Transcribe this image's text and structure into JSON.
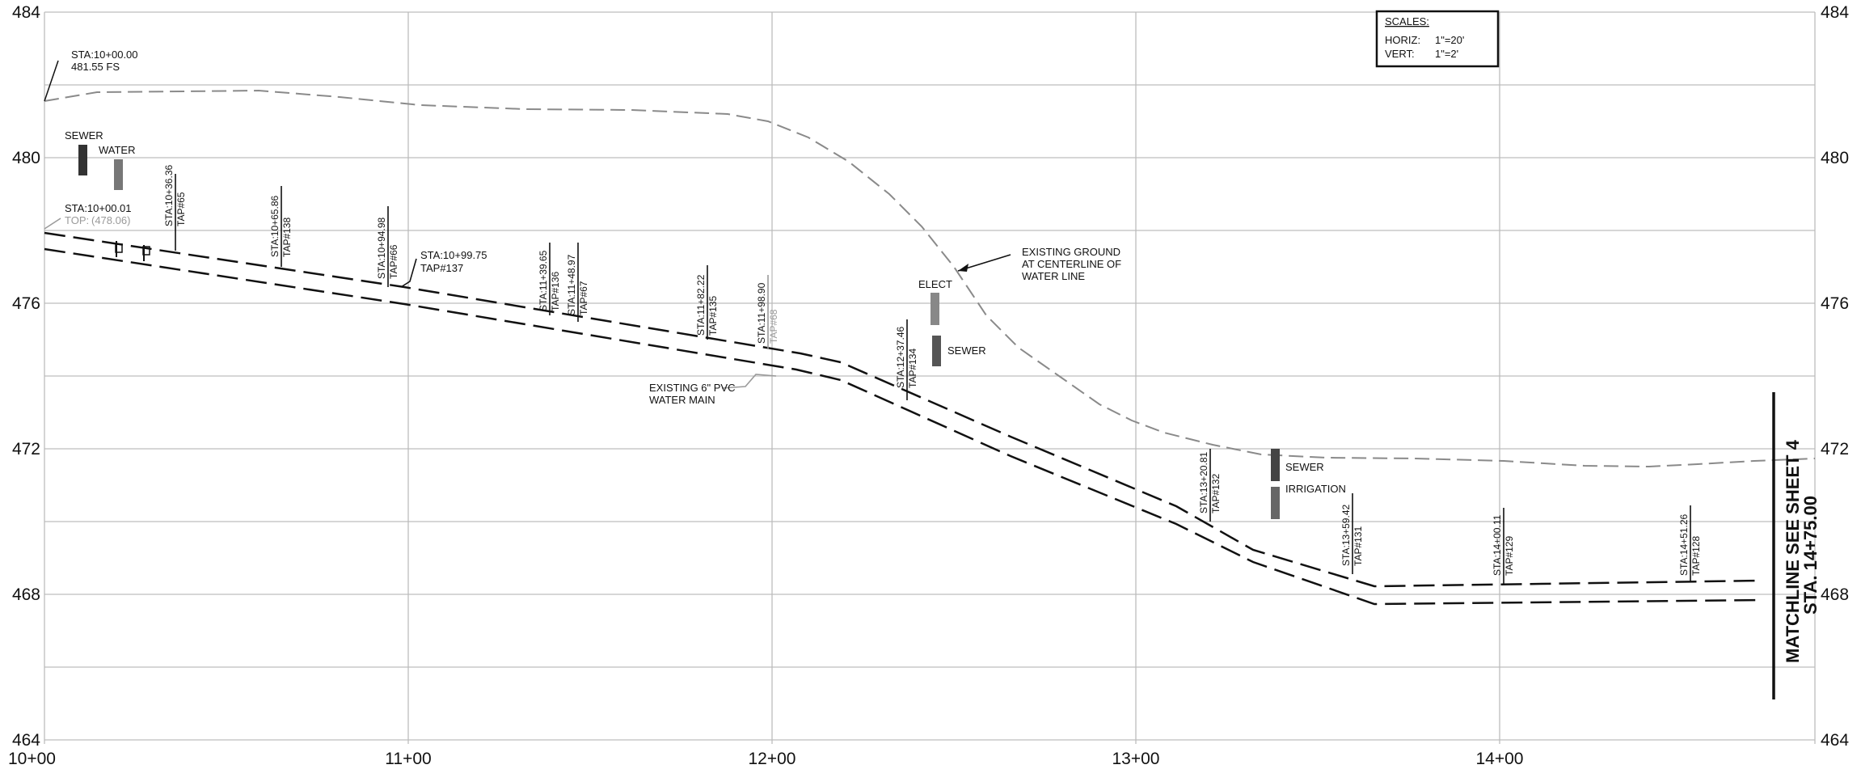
{
  "elevation_labels": [
    "484",
    "480",
    "476",
    "472",
    "468",
    "464"
  ],
  "station_labels": [
    "10+00",
    "11+00",
    "12+00",
    "13+00",
    "14+00"
  ],
  "scales": {
    "title": "SCALES:",
    "horiz_label": "HORIZ:",
    "horiz_value": "1\"=20'",
    "vert_label": "VERT:",
    "vert_value": "1\"=2'"
  },
  "start_note": {
    "line1": "STA:10+00.00",
    "line2": "481.55 FS"
  },
  "top_note": {
    "line1": "STA:10+00.01",
    "line2_prefix": "TOP:",
    "line2_value": "(478.06)"
  },
  "utilities": {
    "sewer_1": "SEWER",
    "water": "WATER",
    "elect": "ELECT",
    "sewer_2": "SEWER",
    "sewer_3": "SEWER",
    "irrigation": "IRRIGATION"
  },
  "existing_ground": {
    "line1": "EXISTING GROUND",
    "line2": "AT CENTERLINE OF",
    "line3": "WATER LINE"
  },
  "existing_main": {
    "line1": "EXISTING 6\" PVC",
    "line2": "WATER MAIN"
  },
  "horizontal_note": {
    "line1": "STA:10+99.75",
    "line2": "TAP#137"
  },
  "taps": [
    {
      "sta": "STA:10+36.36",
      "tap": "TAP#65"
    },
    {
      "sta": "STA:10+65.86",
      "tap": "TAP#138"
    },
    {
      "sta": "STA:10+94.98",
      "tap": "TAP#66"
    },
    {
      "sta": "STA:11+39.65",
      "tap": "TAP#136"
    },
    {
      "sta": "STA:11+48.97",
      "tap": "TAP#67"
    },
    {
      "sta": "STA:11+82.22",
      "tap": "TAP#135"
    },
    {
      "sta": "STA:11+98.90",
      "tap": "TAP#68"
    },
    {
      "sta": "STA:12+37.46",
      "tap": "TAP#134"
    },
    {
      "sta": "STA:13+20.81",
      "tap": "TAP#132"
    },
    {
      "sta": "STA:13+59.42",
      "tap": "TAP#131"
    },
    {
      "sta": "STA:14+00.11",
      "tap": "TAP#129"
    },
    {
      "sta": "STA:14+51.26",
      "tap": "TAP#128"
    }
  ],
  "matchline": {
    "line1": "MATCHLINE SEE SHEET 4",
    "line2": "STA. 14+75.00"
  },
  "colors": {
    "grid": "#bdbdbd",
    "ink": "#111111",
    "ground": "#8a8a8a",
    "utility": "#555555"
  }
}
